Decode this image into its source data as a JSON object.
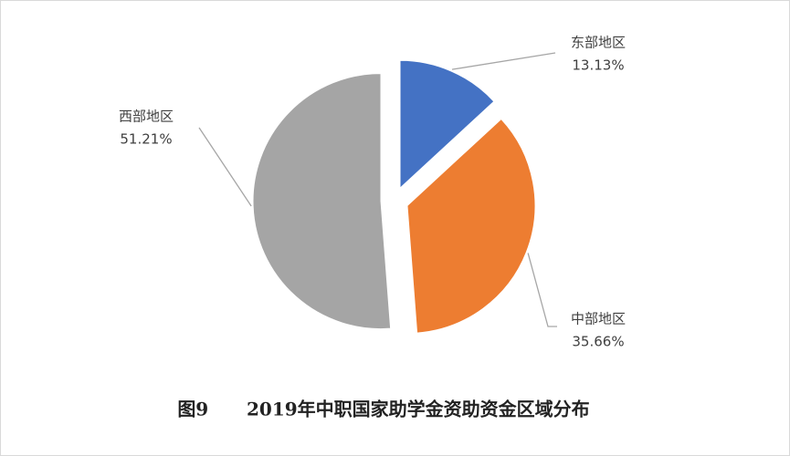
{
  "chart_data": {
    "type": "pie",
    "title": "图9      2019年中职国家助学金资助资金区域分布",
    "categories": [
      "东部地区",
      "中部地区",
      "西部地区"
    ],
    "values": [
      13.13,
      35.66,
      51.21
    ],
    "value_labels": [
      "13.13%",
      "35.66%",
      "51.21%"
    ],
    "colors": [
      "#4472c4",
      "#ed7d31",
      "#a5a5a5"
    ]
  }
}
